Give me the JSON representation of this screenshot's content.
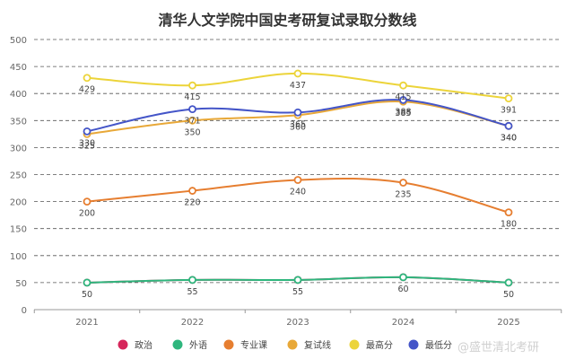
{
  "chart_data": {
    "type": "line",
    "title": "清华人文学院中国史考研复试录取分数线",
    "categories": [
      "2021",
      "2022",
      "2023",
      "2024",
      "2025"
    ],
    "ylim": [
      0,
      500
    ],
    "yticks": [
      0,
      50,
      100,
      150,
      200,
      250,
      300,
      350,
      400,
      450,
      500
    ],
    "grid": true,
    "legend_position": "bottom",
    "series": [
      {
        "name": "政治",
        "color": "#d6265b",
        "values": [
          50,
          55,
          55,
          60,
          50
        ],
        "labels": [
          null,
          null,
          null,
          null,
          null
        ]
      },
      {
        "name": "外语",
        "color": "#2eb67d",
        "values": [
          50,
          55,
          55,
          60,
          50
        ],
        "labels": [
          "50",
          "55",
          "55",
          "60",
          "50"
        ]
      },
      {
        "name": "专业课",
        "color": "#e67e30",
        "values": [
          200,
          220,
          240,
          235,
          180
        ],
        "labels": [
          "200",
          "220",
          "240",
          "235",
          "180"
        ]
      },
      {
        "name": "复试线",
        "color": "#e8a838",
        "values": [
          325,
          350,
          360,
          385,
          340
        ],
        "labels": [
          "325",
          "350",
          "360",
          "385",
          "340"
        ]
      },
      {
        "name": "最高分",
        "color": "#ecd43a",
        "values": [
          429,
          415,
          437,
          415,
          391
        ],
        "labels": [
          "429",
          "415",
          "437",
          "415",
          "391"
        ]
      },
      {
        "name": "最低分",
        "color": "#4455c8",
        "values": [
          330,
          371,
          365,
          388,
          340
        ],
        "labels": [
          "330",
          "371",
          "365",
          "388",
          "340"
        ]
      }
    ]
  },
  "watermark": "@盛世清北考研"
}
